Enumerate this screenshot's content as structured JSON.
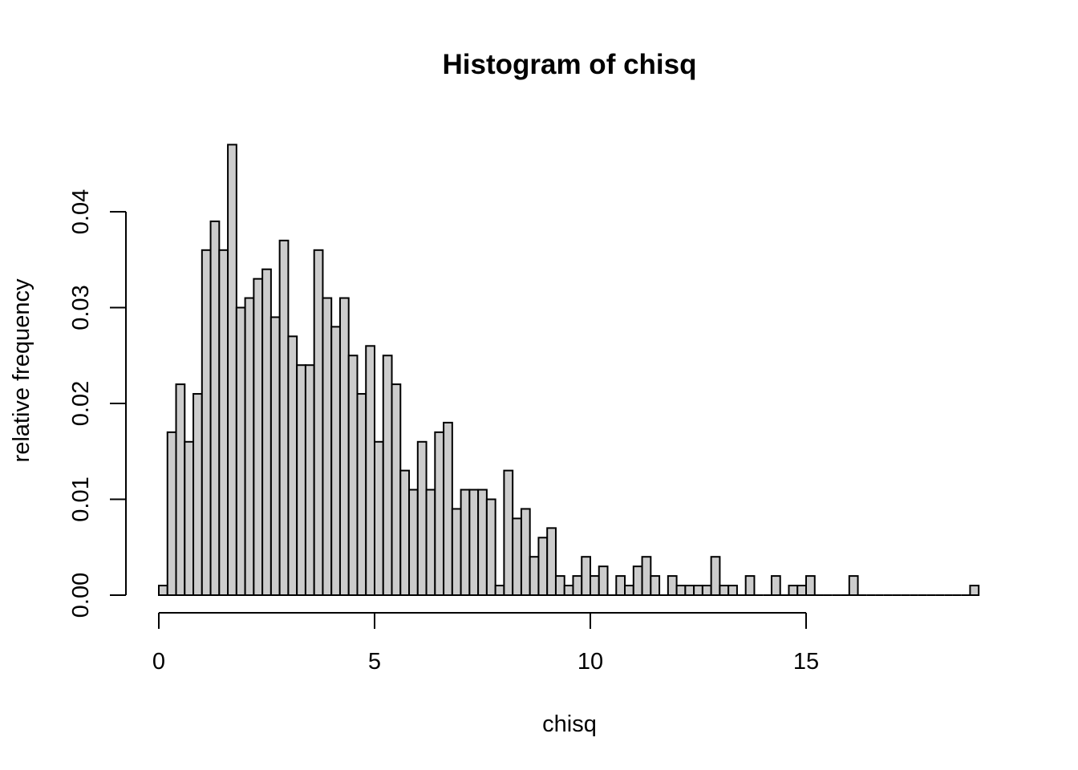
{
  "chart_data": {
    "type": "bar",
    "title": "Histogram of chisq",
    "xlabel": "chisq",
    "ylabel": "relative frequency",
    "xlim": [
      0,
      19
    ],
    "ylim": [
      0,
      0.04
    ],
    "bin_width": 0.2,
    "x_ticks": [
      0,
      5,
      10,
      15
    ],
    "x_tick_labels": [
      "0",
      "5",
      "10",
      "15"
    ],
    "y_ticks": [
      0,
      0.01,
      0.02,
      0.03,
      0.04
    ],
    "y_tick_labels": [
      "0.00",
      "0.01",
      "0.02",
      "0.03",
      "0.04"
    ],
    "bar_color": "#cccccc",
    "grid": false,
    "values": [
      0.001,
      0.017,
      0.022,
      0.016,
      0.021,
      0.036,
      0.039,
      0.036,
      0.047,
      0.03,
      0.031,
      0.033,
      0.034,
      0.029,
      0.037,
      0.027,
      0.024,
      0.024,
      0.036,
      0.031,
      0.028,
      0.031,
      0.025,
      0.021,
      0.026,
      0.016,
      0.025,
      0.022,
      0.013,
      0.011,
      0.016,
      0.011,
      0.017,
      0.018,
      0.009,
      0.011,
      0.011,
      0.011,
      0.01,
      0.001,
      0.013,
      0.008,
      0.009,
      0.004,
      0.006,
      0.007,
      0.002,
      0.001,
      0.002,
      0.004,
      0.002,
      0.003,
      0.0,
      0.002,
      0.001,
      0.003,
      0.004,
      0.002,
      0.0,
      0.002,
      0.001,
      0.001,
      0.001,
      0.001,
      0.004,
      0.001,
      0.001,
      0.0,
      0.002,
      0.0,
      0.0,
      0.002,
      0.0,
      0.001,
      0.001,
      0.002,
      0.0,
      0.0,
      0.0,
      0.0,
      0.002,
      0.0,
      0.0,
      0.0,
      0.0,
      0.0,
      0.0,
      0.0,
      0.0,
      0.0,
      0.0,
      0.0,
      0.0,
      0.0,
      0.001
    ]
  }
}
